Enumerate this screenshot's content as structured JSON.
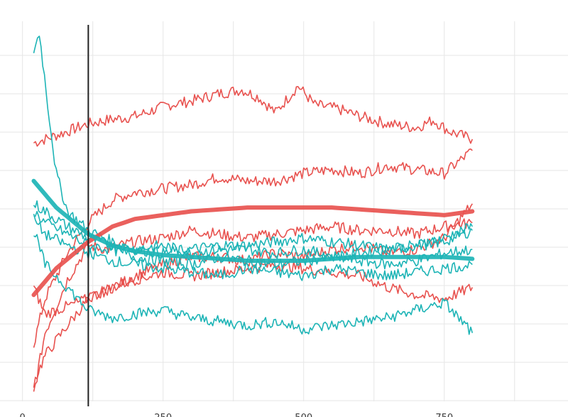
{
  "chart_data": {
    "type": "line",
    "xlim": [
      -40,
      970
    ],
    "ylim": [
      0,
      1
    ],
    "grid": true,
    "legend": "top (cut off)",
    "x_ticks": [
      0,
      250,
      500,
      750
    ],
    "x_tick_labels": [
      "0",
      "250",
      "500",
      "750"
    ],
    "vertical_line_x": 117,
    "colors": {
      "red": "#e8524f",
      "teal": "#1db4b6",
      "grid": "#e6e6e6",
      "vline": "#222222"
    },
    "series": [
      {
        "group": "red",
        "values": [
          [
            20,
            0.68
          ],
          [
            60,
            0.7
          ],
          [
            117,
            0.73
          ],
          [
            150,
            0.74
          ],
          [
            200,
            0.75
          ],
          [
            260,
            0.78
          ],
          [
            300,
            0.79
          ],
          [
            350,
            0.81
          ],
          [
            390,
            0.82
          ],
          [
            420,
            0.8
          ],
          [
            450,
            0.76
          ],
          [
            490,
            0.83
          ],
          [
            520,
            0.78
          ],
          [
            560,
            0.77
          ],
          [
            600,
            0.75
          ],
          [
            650,
            0.73
          ],
          [
            700,
            0.72
          ],
          [
            730,
            0.74
          ],
          [
            760,
            0.71
          ],
          [
            800,
            0.69
          ]
        ]
      },
      {
        "group": "red",
        "values": [
          [
            20,
            0.15
          ],
          [
            40,
            0.27
          ],
          [
            80,
            0.39
          ],
          [
            117,
            0.47
          ],
          [
            160,
            0.53
          ],
          [
            200,
            0.55
          ],
          [
            250,
            0.56
          ],
          [
            300,
            0.57
          ],
          [
            350,
            0.59
          ],
          [
            400,
            0.58
          ],
          [
            450,
            0.58
          ],
          [
            500,
            0.6
          ],
          [
            550,
            0.61
          ],
          [
            600,
            0.6
          ],
          [
            650,
            0.62
          ],
          [
            700,
            0.61
          ],
          [
            750,
            0.6
          ],
          [
            800,
            0.66
          ]
        ]
      },
      {
        "group": "red",
        "values": [
          [
            20,
            0.02
          ],
          [
            40,
            0.18
          ],
          [
            80,
            0.32
          ],
          [
            117,
            0.41
          ],
          [
            150,
            0.4
          ],
          [
            200,
            0.42
          ],
          [
            250,
            0.43
          ],
          [
            300,
            0.45
          ],
          [
            350,
            0.44
          ],
          [
            400,
            0.43
          ],
          [
            450,
            0.44
          ],
          [
            500,
            0.45
          ],
          [
            550,
            0.46
          ],
          [
            600,
            0.45
          ],
          [
            650,
            0.45
          ],
          [
            700,
            0.44
          ],
          [
            750,
            0.46
          ],
          [
            800,
            0.47
          ]
        ]
      },
      {
        "group": "red",
        "values": [
          [
            20,
            0.05
          ],
          [
            40,
            0.12
          ],
          [
            80,
            0.2
          ],
          [
            117,
            0.27
          ],
          [
            160,
            0.3
          ],
          [
            200,
            0.33
          ],
          [
            250,
            0.36
          ],
          [
            300,
            0.38
          ],
          [
            350,
            0.38
          ],
          [
            400,
            0.37
          ],
          [
            450,
            0.39
          ],
          [
            500,
            0.38
          ],
          [
            550,
            0.4
          ],
          [
            600,
            0.41
          ],
          [
            650,
            0.39
          ],
          [
            700,
            0.4
          ],
          [
            750,
            0.43
          ],
          [
            800,
            0.52
          ]
        ]
      },
      {
        "group": "red",
        "values": [
          [
            20,
            0.3
          ],
          [
            40,
            0.23
          ],
          [
            80,
            0.25
          ],
          [
            117,
            0.27
          ],
          [
            160,
            0.3
          ],
          [
            200,
            0.32
          ],
          [
            250,
            0.34
          ],
          [
            300,
            0.33
          ],
          [
            350,
            0.34
          ],
          [
            400,
            0.35
          ],
          [
            450,
            0.36
          ],
          [
            500,
            0.35
          ],
          [
            550,
            0.34
          ],
          [
            600,
            0.33
          ],
          [
            650,
            0.3
          ],
          [
            700,
            0.28
          ],
          [
            750,
            0.27
          ],
          [
            800,
            0.3
          ]
        ]
      },
      {
        "group": "teal",
        "values": [
          [
            20,
            0.92
          ],
          [
            30,
            0.97
          ],
          [
            45,
            0.78
          ],
          [
            60,
            0.6
          ],
          [
            80,
            0.5
          ],
          [
            117,
            0.45
          ],
          [
            160,
            0.42
          ],
          [
            200,
            0.4
          ],
          [
            250,
            0.39
          ],
          [
            300,
            0.4
          ],
          [
            350,
            0.41
          ],
          [
            400,
            0.41
          ],
          [
            450,
            0.42
          ],
          [
            500,
            0.43
          ],
          [
            550,
            0.42
          ],
          [
            600,
            0.41
          ],
          [
            650,
            0.4
          ],
          [
            700,
            0.41
          ],
          [
            750,
            0.42
          ],
          [
            800,
            0.45
          ]
        ]
      },
      {
        "group": "teal",
        "values": [
          [
            20,
            0.52
          ],
          [
            40,
            0.5
          ],
          [
            80,
            0.46
          ],
          [
            117,
            0.43
          ],
          [
            160,
            0.41
          ],
          [
            200,
            0.4
          ],
          [
            250,
            0.41
          ],
          [
            300,
            0.39
          ],
          [
            350,
            0.4
          ],
          [
            400,
            0.4
          ],
          [
            450,
            0.39
          ],
          [
            500,
            0.4
          ],
          [
            550,
            0.38
          ],
          [
            600,
            0.39
          ],
          [
            650,
            0.4
          ],
          [
            700,
            0.41
          ],
          [
            750,
            0.43
          ],
          [
            800,
            0.46
          ]
        ]
      },
      {
        "group": "teal",
        "values": [
          [
            20,
            0.5
          ],
          [
            40,
            0.47
          ],
          [
            80,
            0.44
          ],
          [
            117,
            0.41
          ],
          [
            160,
            0.4
          ],
          [
            200,
            0.38
          ],
          [
            250,
            0.37
          ],
          [
            300,
            0.36
          ],
          [
            350,
            0.38
          ],
          [
            400,
            0.37
          ],
          [
            450,
            0.36
          ],
          [
            500,
            0.37
          ],
          [
            550,
            0.38
          ],
          [
            600,
            0.37
          ],
          [
            650,
            0.36
          ],
          [
            700,
            0.37
          ],
          [
            750,
            0.39
          ],
          [
            800,
            0.4
          ]
        ]
      },
      {
        "group": "teal",
        "values": [
          [
            20,
            0.48
          ],
          [
            40,
            0.44
          ],
          [
            80,
            0.41
          ],
          [
            117,
            0.39
          ],
          [
            160,
            0.37
          ],
          [
            200,
            0.36
          ],
          [
            250,
            0.35
          ],
          [
            300,
            0.34
          ],
          [
            350,
            0.33
          ],
          [
            400,
            0.35
          ],
          [
            450,
            0.34
          ],
          [
            500,
            0.33
          ],
          [
            550,
            0.35
          ],
          [
            600,
            0.34
          ],
          [
            650,
            0.33
          ],
          [
            700,
            0.34
          ],
          [
            750,
            0.35
          ],
          [
            800,
            0.36
          ]
        ]
      },
      {
        "group": "teal",
        "values": [
          [
            20,
            0.45
          ],
          [
            40,
            0.36
          ],
          [
            80,
            0.3
          ],
          [
            117,
            0.24
          ],
          [
            160,
            0.22
          ],
          [
            200,
            0.23
          ],
          [
            250,
            0.24
          ],
          [
            300,
            0.22
          ],
          [
            350,
            0.21
          ],
          [
            400,
            0.2
          ],
          [
            450,
            0.21
          ],
          [
            500,
            0.19
          ],
          [
            550,
            0.2
          ],
          [
            600,
            0.21
          ],
          [
            650,
            0.22
          ],
          [
            700,
            0.24
          ],
          [
            750,
            0.26
          ],
          [
            800,
            0.18
          ]
        ]
      }
    ],
    "trends": [
      {
        "group": "red",
        "values": [
          [
            20,
            0.28
          ],
          [
            60,
            0.35
          ],
          [
            117,
            0.42
          ],
          [
            160,
            0.46
          ],
          [
            200,
            0.48
          ],
          [
            250,
            0.49
          ],
          [
            300,
            0.5
          ],
          [
            350,
            0.505
          ],
          [
            400,
            0.51
          ],
          [
            450,
            0.51
          ],
          [
            500,
            0.51
          ],
          [
            550,
            0.51
          ],
          [
            600,
            0.505
          ],
          [
            650,
            0.5
          ],
          [
            700,
            0.495
          ],
          [
            750,
            0.49
          ],
          [
            800,
            0.5
          ]
        ]
      },
      {
        "group": "teal",
        "values": [
          [
            20,
            0.58
          ],
          [
            60,
            0.51
          ],
          [
            117,
            0.44
          ],
          [
            160,
            0.41
          ],
          [
            200,
            0.395
          ],
          [
            250,
            0.385
          ],
          [
            300,
            0.38
          ],
          [
            350,
            0.375
          ],
          [
            400,
            0.37
          ],
          [
            450,
            0.37
          ],
          [
            500,
            0.37
          ],
          [
            550,
            0.375
          ],
          [
            600,
            0.38
          ],
          [
            650,
            0.38
          ],
          [
            700,
            0.38
          ],
          [
            750,
            0.38
          ],
          [
            800,
            0.375
          ]
        ]
      }
    ]
  }
}
